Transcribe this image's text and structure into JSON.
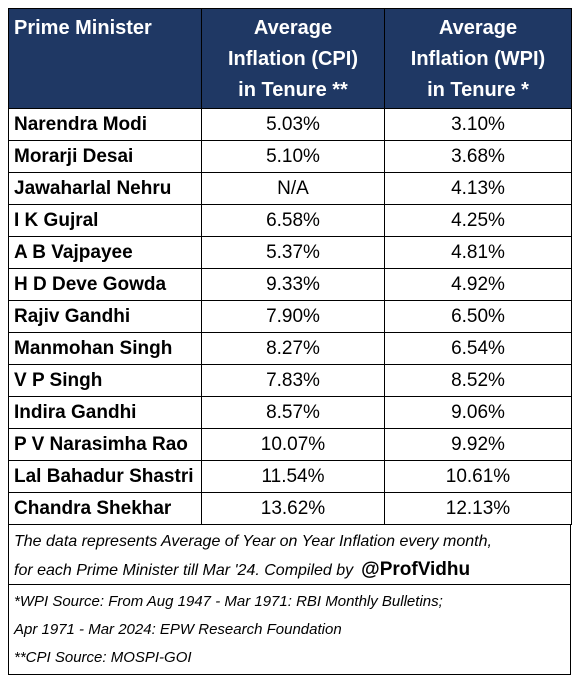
{
  "table": {
    "header": [
      [
        "Prime Minister"
      ],
      [
        "Average",
        "Inflation (CPI)",
        "in Tenure **"
      ],
      [
        "Average",
        "Inflation (WPI)",
        "in Tenure *"
      ]
    ],
    "rows": [
      [
        "Narendra Modi",
        "5.03%",
        "3.10%"
      ],
      [
        "Morarji Desai",
        "5.10%",
        "3.68%"
      ],
      [
        "Jawaharlal Nehru",
        "N/A",
        "4.13%"
      ],
      [
        "I K Gujral",
        "6.58%",
        "4.25%"
      ],
      [
        "A B Vajpayee",
        "5.37%",
        "4.81%"
      ],
      [
        "H D Deve Gowda",
        "9.33%",
        "4.92%"
      ],
      [
        "Rajiv Gandhi",
        "7.90%",
        "6.50%"
      ],
      [
        "Manmohan Singh",
        "8.27%",
        "6.54%"
      ],
      [
        "V P Singh",
        "7.83%",
        "8.52%"
      ],
      [
        "Indira Gandhi",
        "8.57%",
        "9.06%"
      ],
      [
        "P V Narasimha Rao",
        "10.07%",
        "9.92%"
      ],
      [
        "Lal Bahadur Shastri",
        "11.54%",
        "10.61%"
      ],
      [
        "Chandra Shekhar",
        "13.62%",
        "12.13%"
      ]
    ]
  },
  "note": {
    "lines": [
      "The data represents Average of Year on Year Inflation every month,",
      "for each Prime Minister till Mar '24. Compiled by"
    ],
    "handle": "@ProfVidhu"
  },
  "sources": [
    "*WPI Source: From Aug 1947 - Mar 1971: RBI Monthly Bulletins;",
    "Apr 1971 - Mar 2024: EPW Research Foundation",
    "**CPI Source: MOSPI-GOI"
  ]
}
